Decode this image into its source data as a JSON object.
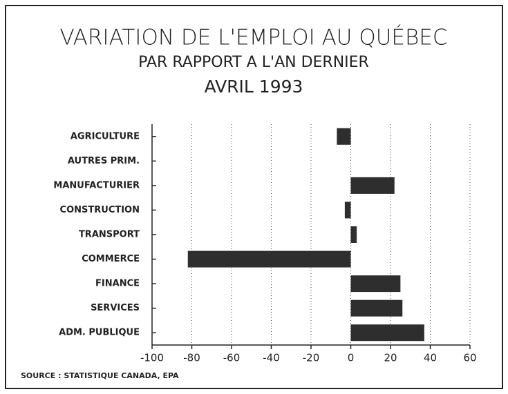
{
  "chart_data": {
    "type": "bar",
    "orientation": "horizontal",
    "title": "VARIATION DE L'EMPLOI AU QUÉBEC",
    "subtitle": [
      "PAR RAPPORT A L'AN DERNIER",
      "AVRIL 1993"
    ],
    "categories": [
      "AGRICULTURE",
      "AUTRES PRIM.",
      "MANUFACTURIER",
      "CONSTRUCTION",
      "TRANSPORT",
      "COMMERCE",
      "FINANCE",
      "SERVICES",
      "ADM. PUBLIQUE"
    ],
    "values": [
      -7,
      0,
      22,
      -3,
      3,
      -82,
      25,
      26,
      37
    ],
    "color": "#2e2e2e",
    "xlim": [
      -100,
      60
    ],
    "xticks": [
      -100,
      -80,
      -60,
      -40,
      -20,
      0,
      20,
      40,
      60
    ],
    "grid": true,
    "source": "SOURCE : STATISTIQUE CANADA, EPA"
  }
}
